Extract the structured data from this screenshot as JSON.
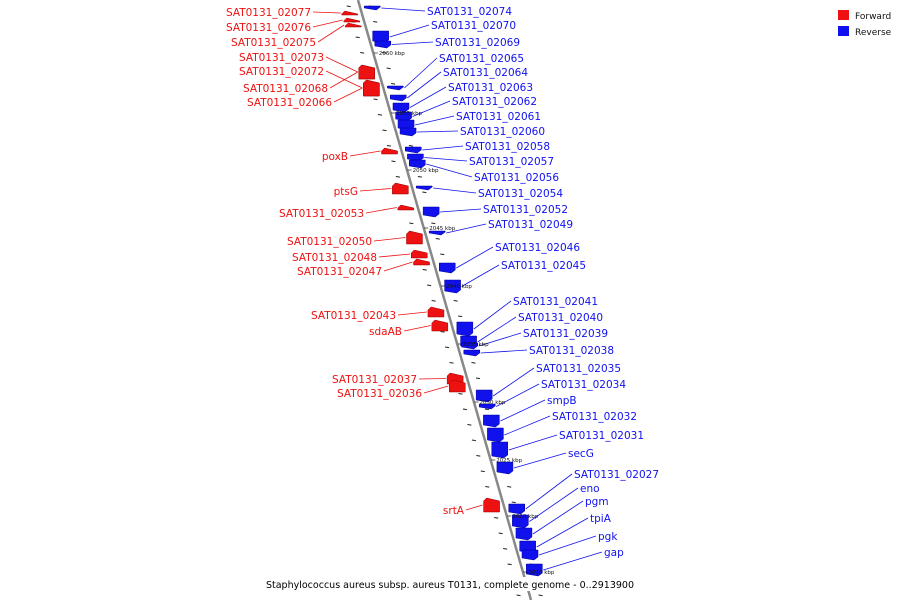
{
  "caption": "Staphylococcus aureus subsp. aureus T0131, complete genome - 0..2913900",
  "legend": [
    {
      "label": "Forward",
      "color": "#ee1111"
    },
    {
      "label": "Reverse",
      "color": "#1111ee"
    }
  ],
  "colors": {
    "forward": "#ee1111",
    "reverse": "#1111ee",
    "backbone": "#888888"
  },
  "scale": [
    "2060 kbp",
    "2055 kbp",
    "2050 kbp",
    "2045 kbp",
    "2040 kbp",
    "2035 kbp",
    "2030 kbp",
    "2025 kbp",
    "2020 kbp",
    "2015 kbp"
  ],
  "forward_genes": [
    "SAT0131_02077",
    "SAT0131_02076",
    "SAT0131_02075",
    "SAT0131_02073",
    "SAT0131_02072",
    "SAT0131_02068",
    "SAT0131_02066",
    "poxB",
    "ptsG",
    "SAT0131_02053",
    "SAT0131_02050",
    "SAT0131_02048",
    "SAT0131_02047",
    "SAT0131_02043",
    "sdaAB",
    "SAT0131_02037",
    "SAT0131_02036",
    "srtA"
  ],
  "reverse_genes": [
    "SAT0131_02074",
    "SAT0131_02070",
    "SAT0131_02069",
    "SAT0131_02065",
    "SAT0131_02064",
    "SAT0131_02063",
    "SAT0131_02062",
    "SAT0131_02061",
    "SAT0131_02060",
    "SAT0131_02058",
    "SAT0131_02057",
    "SAT0131_02056",
    "SAT0131_02054",
    "SAT0131_02052",
    "SAT0131_02049",
    "SAT0131_02046",
    "SAT0131_02045",
    "SAT0131_02041",
    "SAT0131_02040",
    "SAT0131_02039",
    "SAT0131_02038",
    "SAT0131_02035",
    "SAT0131_02034",
    "smpB",
    "SAT0131_02032",
    "SAT0131_02031",
    "secG",
    "SAT0131_02027",
    "eno",
    "pgm",
    "tpiA",
    "pgk",
    "gap"
  ]
}
